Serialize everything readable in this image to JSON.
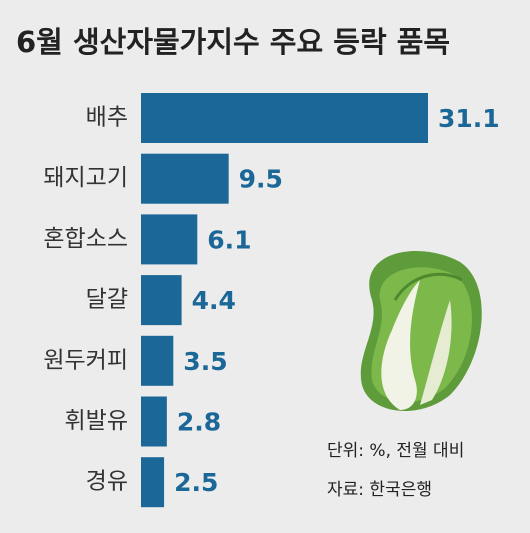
{
  "chart_data": {
    "type": "bar",
    "orientation": "horizontal",
    "title": "6월 생산자물가지수 주요 등락 품목",
    "categories": [
      "배추",
      "돼지고기",
      "혼합소스",
      "달걀",
      "원두커피",
      "휘발유",
      "경유"
    ],
    "values": [
      31.1,
      9.5,
      6.1,
      4.4,
      3.5,
      2.8,
      2.5
    ],
    "color": "#1b6797",
    "annotations": [
      "단위: %, 전월 대비",
      "자료: 한국은행"
    ]
  }
}
